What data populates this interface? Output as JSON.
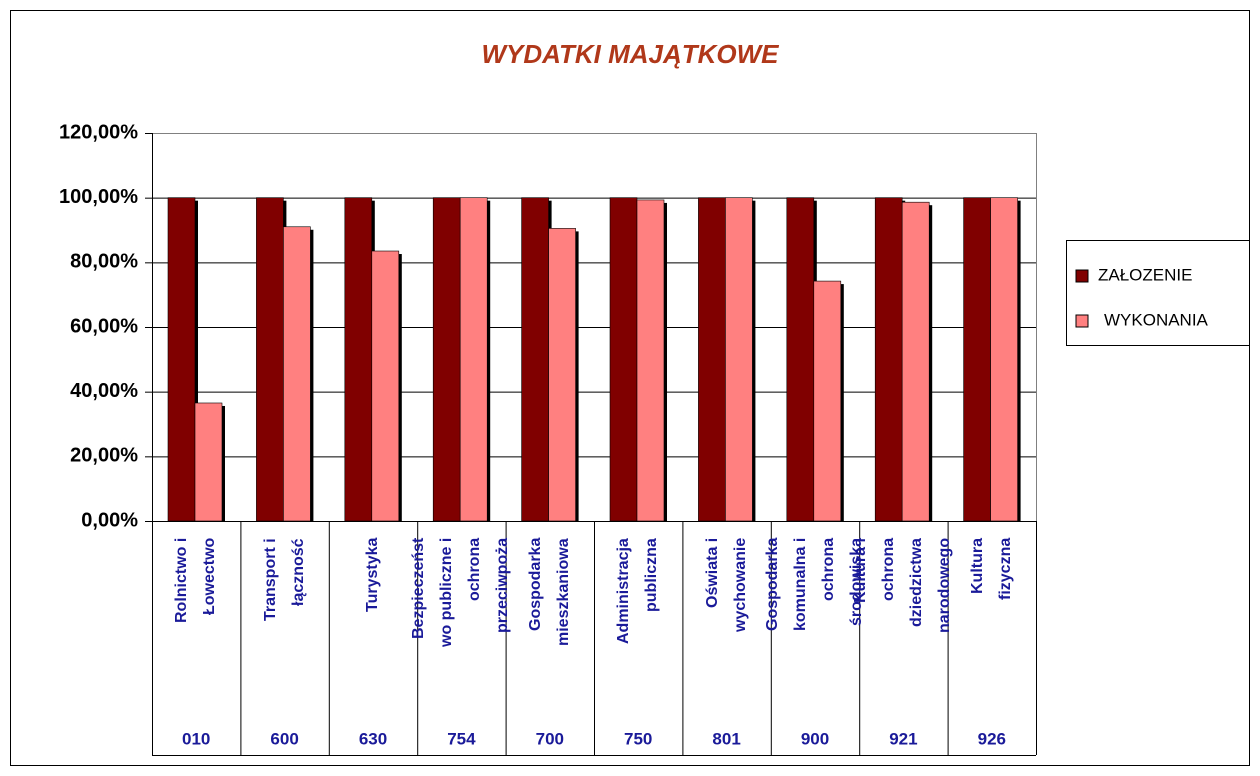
{
  "chart_data": {
    "type": "bar",
    "title": "WYDATKI MAJĄTKOWE",
    "categories": [
      "Rolnictwo i\nŁowectwo",
      "Transport i\nłączność",
      "Turystyka",
      "Bezpieczeńst\nwo publiczne i\nochrona\nprzeciwpoża",
      "Gospodarka\nmieszkaniowa",
      "Administracja\npubliczna",
      "Oświata i\nwychowanie",
      "Gospodarka\nkomunalna i\nochrona\nśrodowiska",
      "Kultura i\nochrona\ndziedzictwa\nnarodowego",
      "Kultura\nfizyczna"
    ],
    "codes": [
      "010",
      "600",
      "630",
      "754",
      "700",
      "750",
      "801",
      "900",
      "921",
      "926"
    ],
    "series": [
      {
        "name": "ZAŁOZENIE",
        "color": "#800000",
        "values": [
          100,
          100,
          100,
          100,
          100,
          100,
          100,
          100,
          100,
          100
        ]
      },
      {
        "name": "WYKONANIA",
        "color": "#ff8080",
        "values": [
          36.5,
          91,
          83.5,
          100,
          90.5,
          99.3,
          100,
          74.2,
          98.6,
          100
        ]
      }
    ],
    "ylim": [
      0,
      120
    ],
    "yticks": [
      {
        "value": 0,
        "label": "0,00%"
      },
      {
        "value": 20,
        "label": "20,00%"
      },
      {
        "value": 40,
        "label": "40,00%"
      },
      {
        "value": 60,
        "label": "60,00%"
      },
      {
        "value": 80,
        "label": "80,00%"
      },
      {
        "value": 100,
        "label": "100,00%"
      },
      {
        "value": 120,
        "label": "120,00%"
      }
    ],
    "grid": true,
    "legend": "right"
  }
}
